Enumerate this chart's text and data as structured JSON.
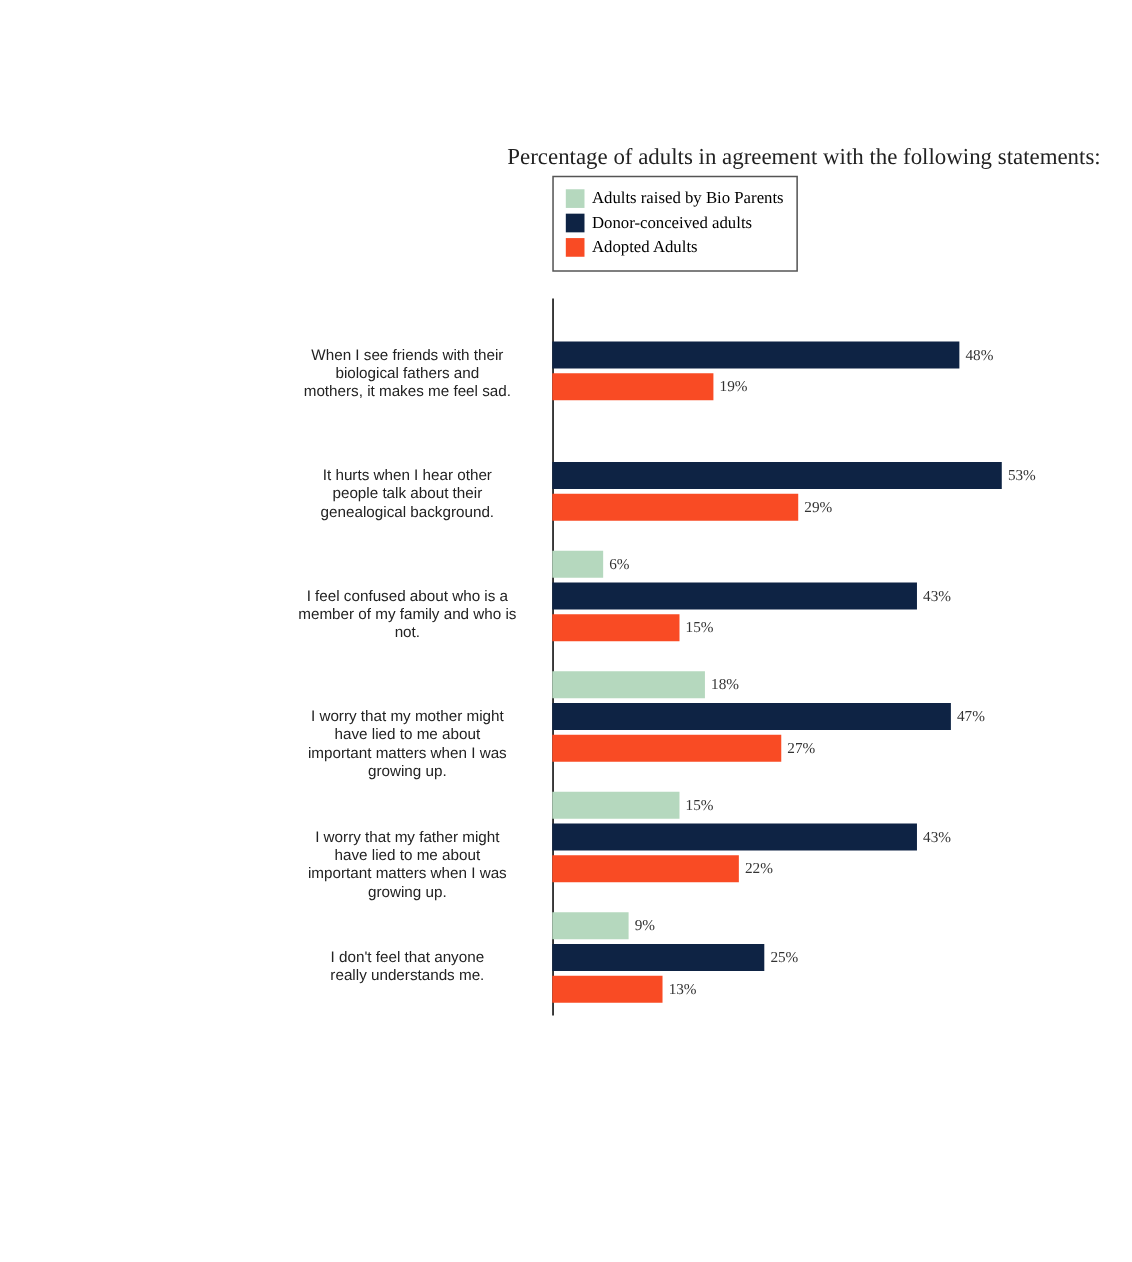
{
  "chart_data": {
    "type": "bar",
    "orientation": "horizontal",
    "title": "Percentage of adults in agreement with the following statements:",
    "categories": [
      "When I see friends with their biological fathers and mothers, it makes me feel sad.",
      "It hurts when I hear other people talk about their genealogical background.",
      "I feel confused about who is a member of my family and who is not.",
      "I worry that my mother might have lied to me about important matters when I was growing up.",
      "I worry that my father might have lied to me about important matters when I was growing up.",
      "I don't feel that anyone really understands me."
    ],
    "series": [
      {
        "name": "Adults raised by Bio Parents",
        "color": "#b5d8be",
        "values": [
          null,
          null,
          6,
          18,
          15,
          9
        ],
        "value_labels": [
          null,
          null,
          "6%",
          "18%",
          "15%",
          "9%"
        ]
      },
      {
        "name": "Donor-conceived adults",
        "color": "#0e2344",
        "values": [
          48,
          53,
          43,
          47,
          43,
          25
        ],
        "value_labels": [
          "48%",
          "53%",
          "43%",
          "47%",
          "43%",
          "25%"
        ]
      },
      {
        "name": "Adopted Adults",
        "color": "#f94b24",
        "values": [
          19,
          29,
          15,
          27,
          22,
          13
        ],
        "value_labels": [
          "19%",
          "29%",
          "15%",
          "27%",
          "22%",
          "13%"
        ]
      }
    ],
    "legend": "top",
    "grid": false,
    "tick_labels": "y"
  }
}
